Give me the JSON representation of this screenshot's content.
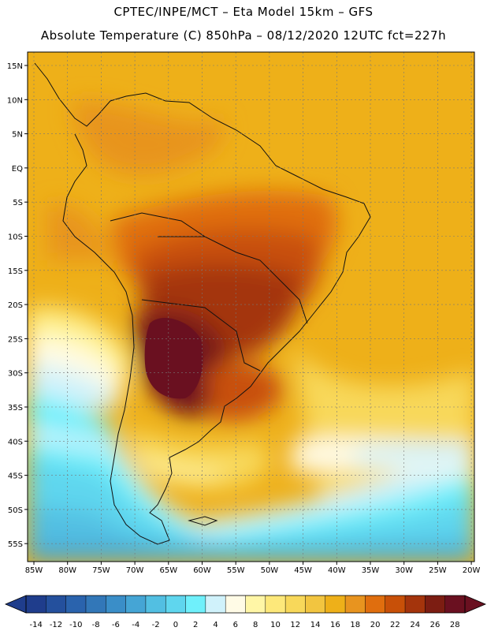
{
  "header": {
    "line1": "CPTEC/INPE/MCT –  Eta Model 15km – GFS",
    "line2": "Absolute Temperature (C) 850hPa – 08/12/2020 12UTC fct=227h"
  },
  "map": {
    "lat_labels": [
      "15N",
      "10N",
      "5N",
      "EQ",
      "5S",
      "10S",
      "15S",
      "20S",
      "25S",
      "30S",
      "35S",
      "40S",
      "45S",
      "50S",
      "55S"
    ],
    "lon_labels": [
      "85W",
      "80W",
      "75W",
      "70W",
      "65W",
      "60W",
      "55W",
      "50W",
      "45W",
      "40W",
      "35W",
      "30W",
      "25W",
      "20W"
    ]
  },
  "legend": {
    "labels": [
      "-14",
      "-12",
      "-10",
      "-8",
      "-6",
      "-4",
      "-2",
      "0",
      "2",
      "4",
      "6",
      "8",
      "10",
      "12",
      "14",
      "16",
      "18",
      "20",
      "22",
      "24",
      "26",
      "28"
    ],
    "colors": [
      "#1f3d8c",
      "#24509d",
      "#2a63ad",
      "#3277b8",
      "#3a8ec8",
      "#45a5d5",
      "#52bfe2",
      "#5fd6ee",
      "#6ff0fb",
      "#d0f2fb",
      "#fffbe6",
      "#fff6a6",
      "#fde87a",
      "#f8d85a",
      "#f2c540",
      "#eeb019",
      "#e8941f",
      "#e06e0e",
      "#c85008",
      "#a4340c",
      "#7c1d12",
      "#6a1020"
    ]
  },
  "colors": {
    "frame": "#000000",
    "grid": "#777777",
    "coast": "#111111"
  }
}
